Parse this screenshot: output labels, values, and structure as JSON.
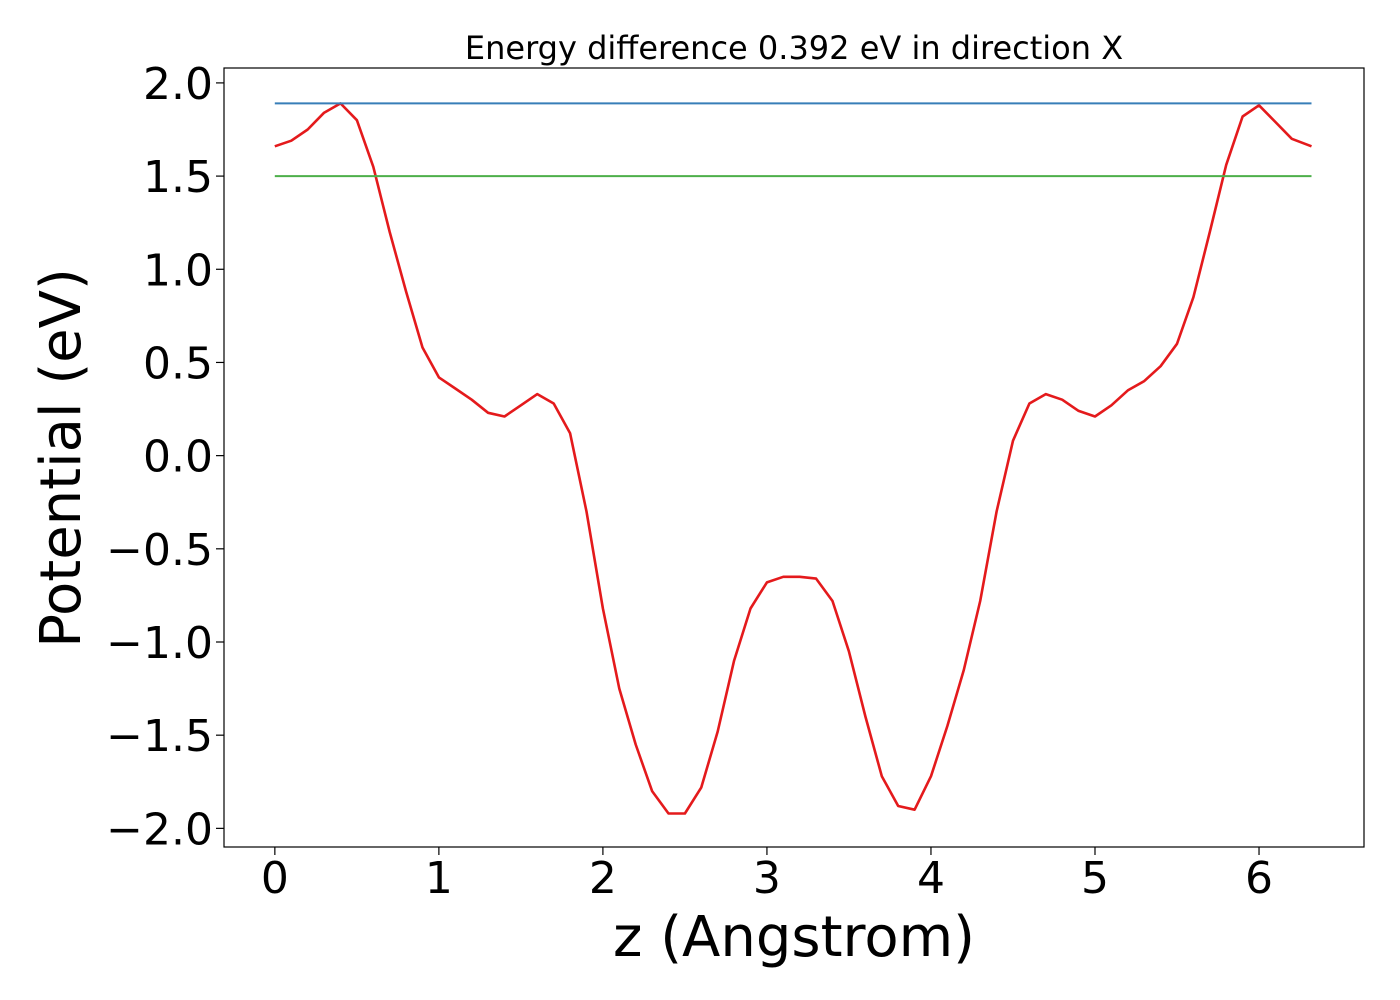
{
  "chart_data": {
    "type": "line",
    "title": "Energy difference 0.392 eV in direction X",
    "xlabel": "z (Angstrom)",
    "ylabel": "Potential (eV)",
    "xlim": [
      -0.31,
      6.64
    ],
    "ylim": [
      -2.1,
      2.08
    ],
    "grid": false,
    "x_ticks": [
      0,
      1,
      2,
      3,
      4,
      5,
      6
    ],
    "x_tick_labels": [
      "0",
      "1",
      "2",
      "3",
      "4",
      "5",
      "6"
    ],
    "y_ticks": [
      -2.0,
      -1.5,
      -1.0,
      -0.5,
      0.0,
      0.5,
      1.0,
      1.5,
      2.0
    ],
    "y_tick_labels": [
      "−2.0",
      "−1.5",
      "−1.0",
      "−0.5",
      "0.0",
      "0.5",
      "1.0",
      "1.5",
      "2.0"
    ],
    "series": [
      {
        "color": "#e41a1c",
        "x": [
          0,
          0.1,
          0.2,
          0.3,
          0.4,
          0.5,
          0.6,
          0.7,
          0.8,
          0.9,
          1.0,
          1.1,
          1.2,
          1.3,
          1.4,
          1.5,
          1.6,
          1.7,
          1.8,
          1.9,
          2.0,
          2.1,
          2.2,
          2.3,
          2.4,
          2.5,
          2.6,
          2.7,
          2.8,
          2.9,
          3.0,
          3.1,
          3.2,
          3.3,
          3.4,
          3.5,
          3.6,
          3.7,
          3.8,
          3.9,
          4.0,
          4.1,
          4.2,
          4.3,
          4.4,
          4.5,
          4.6,
          4.7,
          4.8,
          4.9,
          5.0,
          5.1,
          5.2,
          5.3,
          5.4,
          5.5,
          5.6,
          5.7,
          5.8,
          5.9,
          6.0,
          6.1,
          6.2,
          6.32
        ],
        "y": [
          1.66,
          1.69,
          1.75,
          1.84,
          1.89,
          1.8,
          1.55,
          1.2,
          0.88,
          0.58,
          0.42,
          0.36,
          0.3,
          0.23,
          0.21,
          0.27,
          0.33,
          0.28,
          0.12,
          -0.3,
          -0.82,
          -1.25,
          -1.55,
          -1.8,
          -1.92,
          -1.92,
          -1.78,
          -1.48,
          -1.1,
          -0.82,
          -0.68,
          -0.65,
          -0.65,
          -0.66,
          -0.78,
          -1.05,
          -1.4,
          -1.72,
          -1.88,
          -1.9,
          -1.72,
          -1.45,
          -1.15,
          -0.78,
          -0.3,
          0.08,
          0.28,
          0.33,
          0.3,
          0.24,
          0.21,
          0.27,
          0.35,
          0.4,
          0.48,
          0.6,
          0.85,
          1.2,
          1.56,
          1.82,
          1.88,
          1.79,
          1.7,
          1.66
        ]
      },
      {
        "color": "#377eb8",
        "x": [
          0,
          6.32
        ],
        "y": [
          1.89,
          1.89
        ]
      },
      {
        "color": "#4daf4a",
        "x": [
          0,
          6.32
        ],
        "y": [
          1.5,
          1.5
        ]
      }
    ]
  }
}
